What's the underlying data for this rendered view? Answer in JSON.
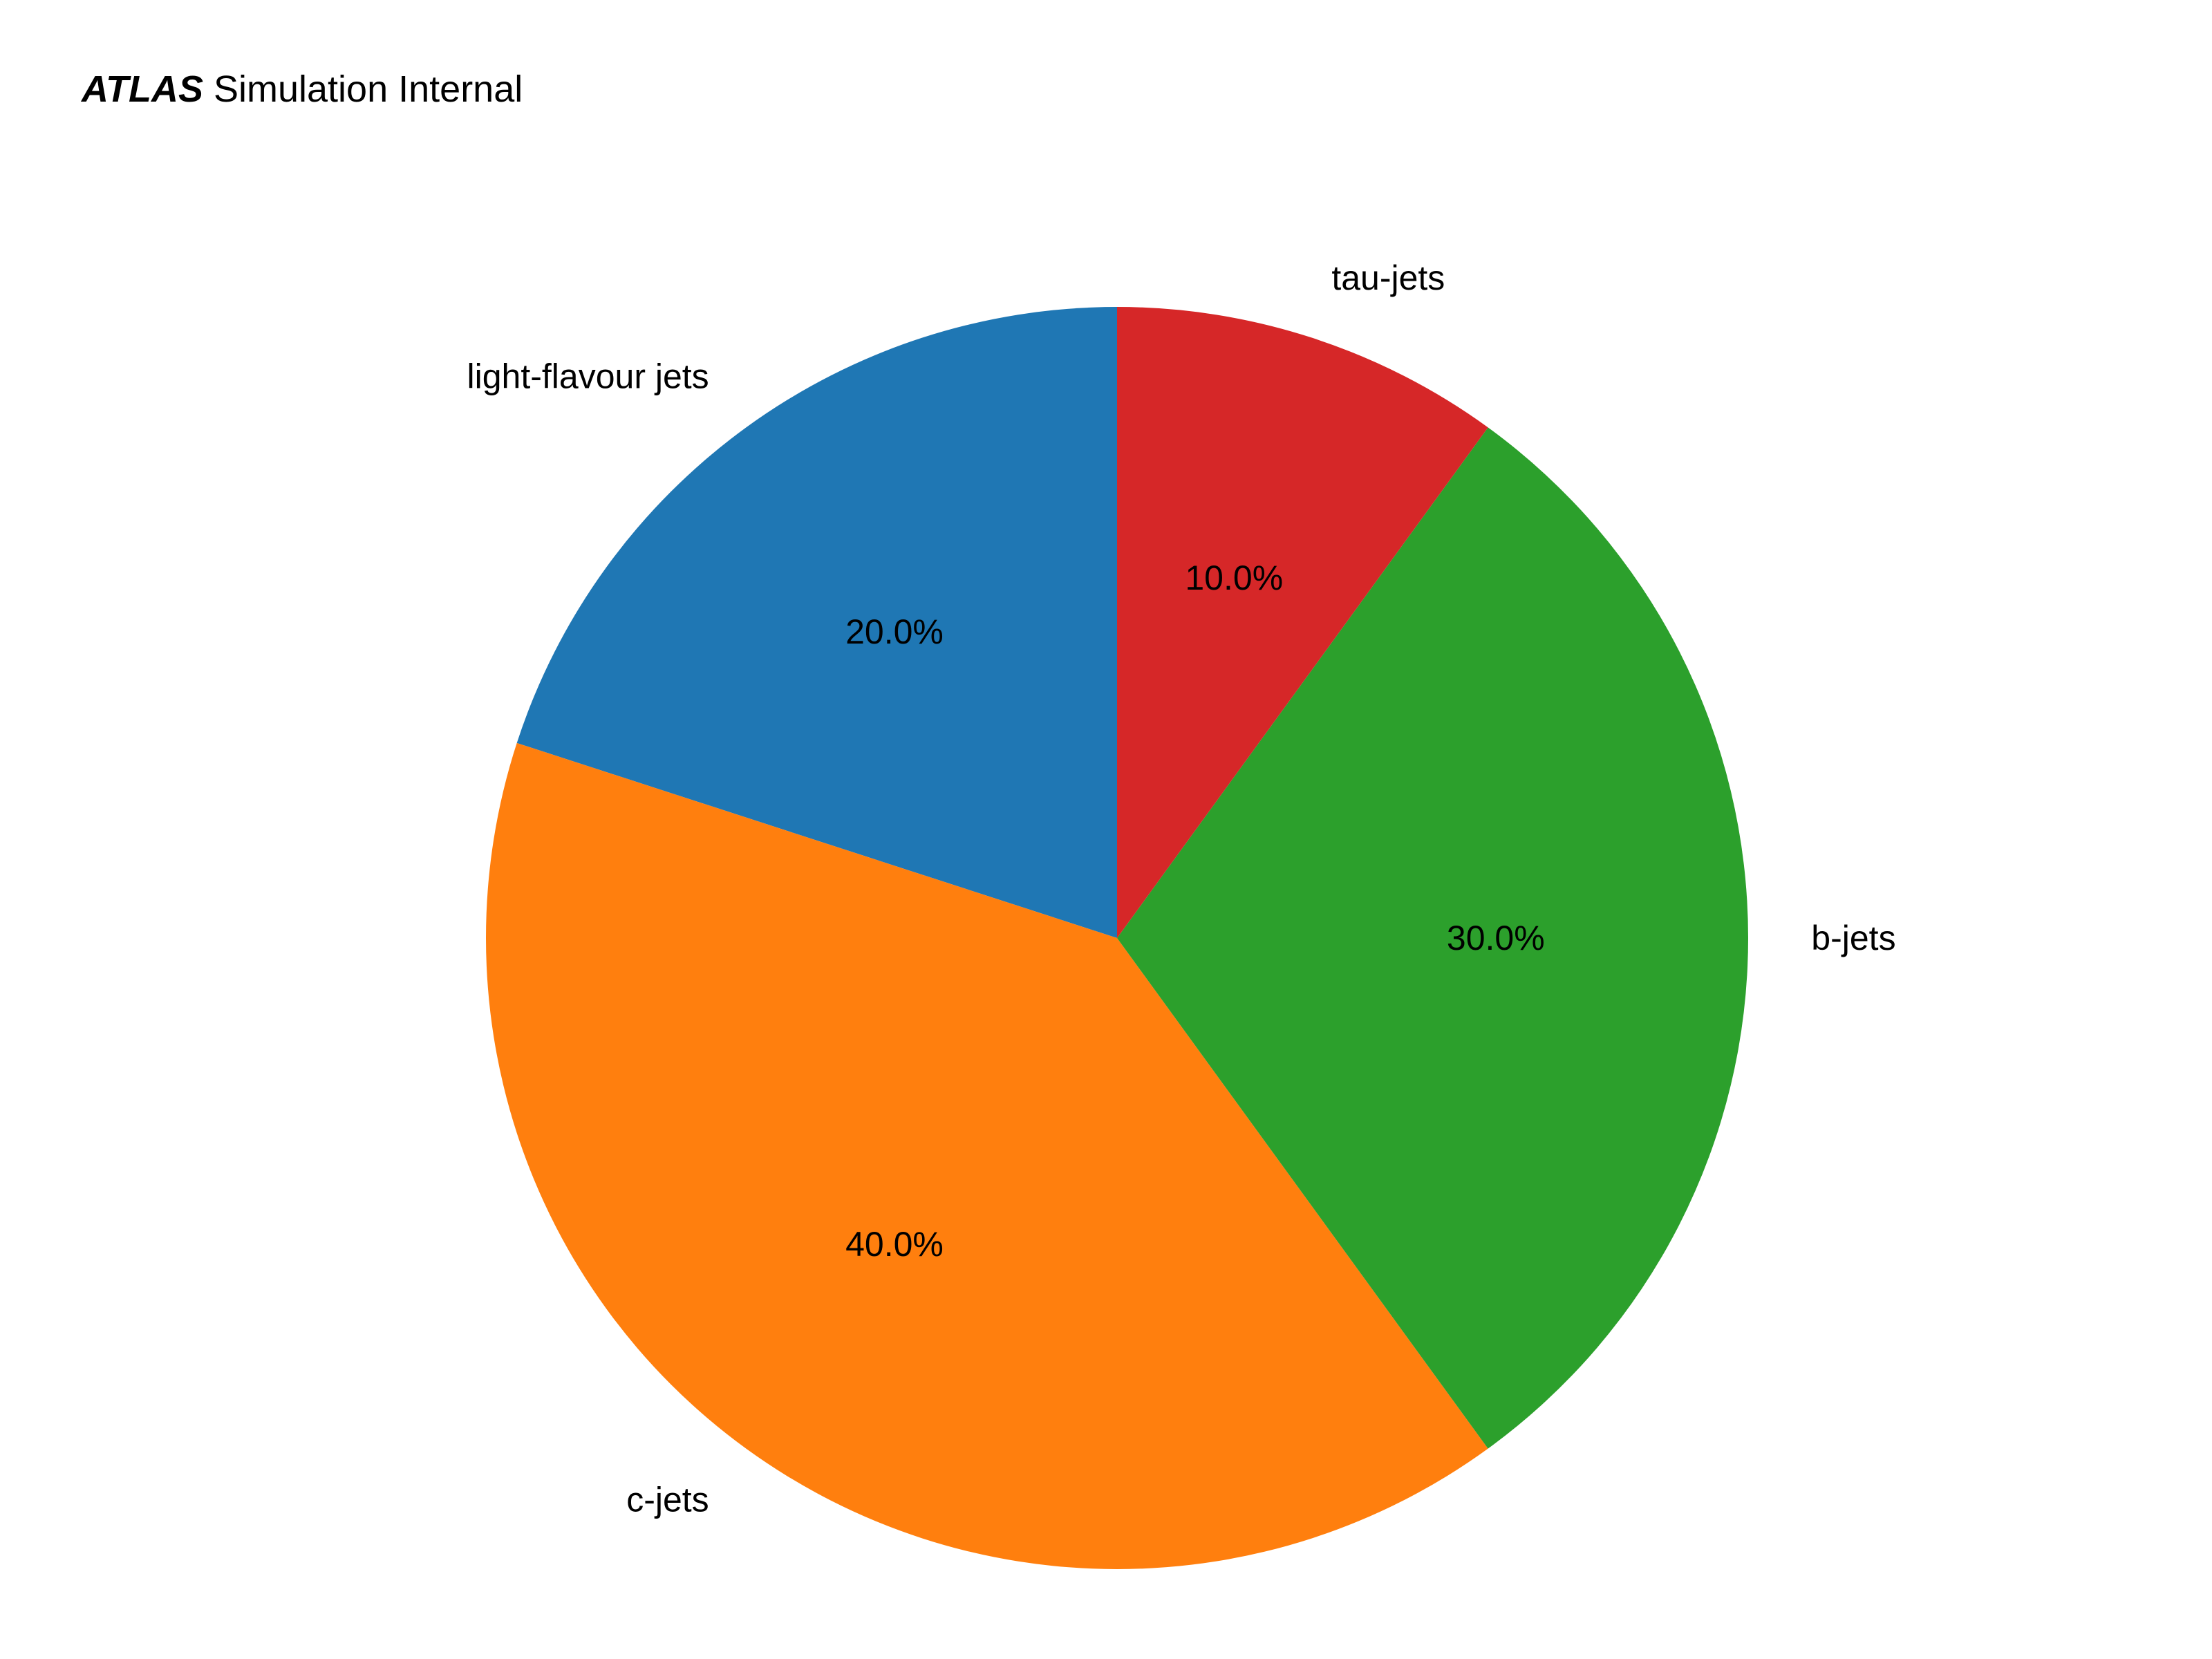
{
  "header": {
    "experiment": "ATLAS",
    "status": "Simulation Internal"
  },
  "chart_data": {
    "type": "pie",
    "start_angle_deg": 90,
    "direction": "counterclockwise",
    "slices": [
      {
        "label": "light-flavour jets",
        "value": 20.0,
        "pct_label": "20.0%",
        "color": "#1f77b4"
      },
      {
        "label": "c-jets",
        "value": 40.0,
        "pct_label": "40.0%",
        "color": "#ff7f0e"
      },
      {
        "label": "b-jets",
        "value": 30.0,
        "pct_label": "30.0%",
        "color": "#2ca02c"
      },
      {
        "label": "tau-jets",
        "value": 10.0,
        "pct_label": "10.0%",
        "color": "#d62728"
      }
    ]
  }
}
